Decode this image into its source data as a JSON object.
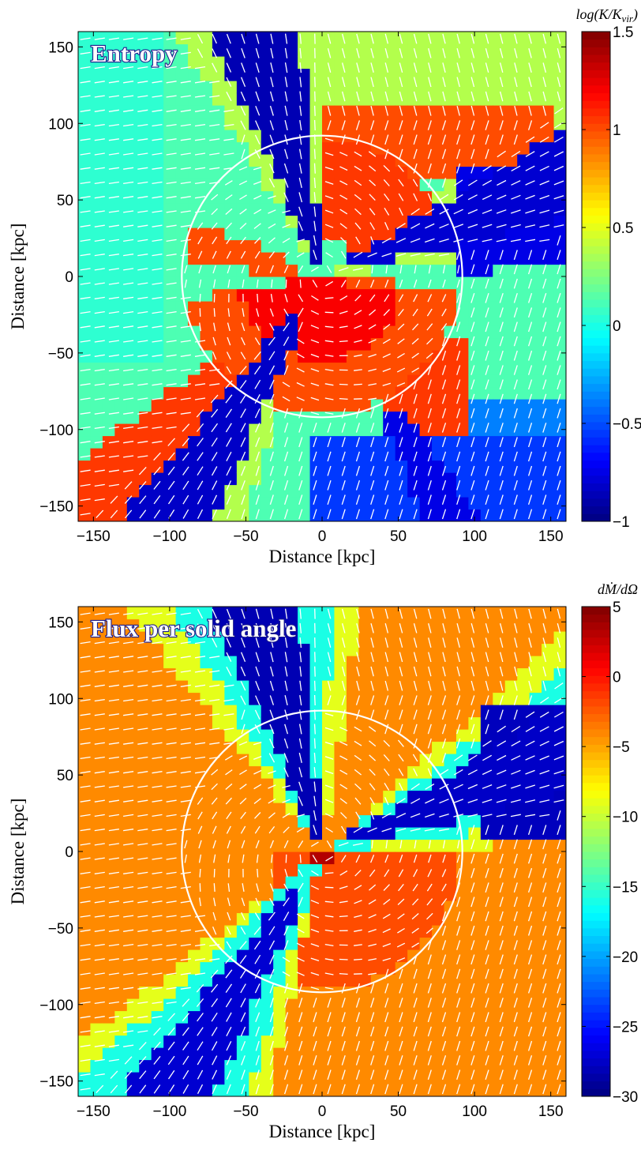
{
  "chart_data": [
    {
      "type": "heatmap",
      "panel_title": "Entropy",
      "xlabel": "Distance [kpc]",
      "ylabel": "Distance [kpc]",
      "xlim": [
        -160,
        160
      ],
      "ylim": [
        -160,
        160
      ],
      "x_ticks": [
        "−150",
        "−100",
        "−50",
        "0",
        "50",
        "100",
        "150"
      ],
      "y_ticks": [
        "−150",
        "−100",
        "−50",
        "0",
        "50",
        "100",
        "150"
      ],
      "x_tick_values": [
        -150,
        -100,
        -50,
        0,
        50,
        100,
        150
      ],
      "y_tick_values": [
        -150,
        -100,
        -50,
        0,
        50,
        100,
        150
      ],
      "colorbar": {
        "label": "log(K/K_vir)",
        "label_display": "log(K/K",
        "label_sub": "vir",
        "range": [
          -1,
          1.5
        ],
        "ticks": [
          "−1",
          "−0.5",
          "0",
          "0.5",
          "1",
          "1.5"
        ],
        "tick_values": [
          -1,
          -0.5,
          0,
          0.5,
          1,
          1.5
        ]
      },
      "circle_radius_kpc": 92,
      "overlay": "velocity vectors (white arrows)",
      "field_colors": {
        "background": "#7fe7a7",
        "cold_stream": "#0a1aa8",
        "hot_gas": "#d9100a",
        "hot_core": "#8f0505",
        "warm": "#f6ec1e"
      }
    },
    {
      "type": "heatmap",
      "panel_title": "Flux per solid angle",
      "xlabel": "Distance [kpc]",
      "ylabel": "Distance [kpc]",
      "xlim": [
        -160,
        160
      ],
      "ylim": [
        -160,
        160
      ],
      "x_ticks": [
        "−150",
        "−100",
        "−50",
        "0",
        "50",
        "100",
        "150"
      ],
      "y_ticks": [
        "−150",
        "−100",
        "−50",
        "0",
        "50",
        "100",
        "150"
      ],
      "x_tick_values": [
        -150,
        -100,
        -50,
        0,
        50,
        100,
        150
      ],
      "y_tick_values": [
        -150,
        -100,
        -50,
        0,
        50,
        100,
        150
      ],
      "colorbar": {
        "label": "dṀ/dΩ",
        "label_display": "dṀ/dΩ",
        "label_sub": "",
        "range": [
          -30,
          5
        ],
        "ticks": [
          "−30",
          "−25",
          "−20",
          "−15",
          "−10",
          "−5",
          "0",
          "5"
        ],
        "tick_values": [
          -30,
          -25,
          -20,
          -15,
          -10,
          -5,
          0,
          5
        ]
      },
      "circle_radius_kpc": 92,
      "overlay": "velocity vectors (white arrows)",
      "field_colors": {
        "background": "#fdb01c",
        "cold_stream": "#08168f",
        "outflow": "#f98a1a",
        "core": "#8a0606",
        "warm": "#f3ee2a"
      }
    }
  ]
}
